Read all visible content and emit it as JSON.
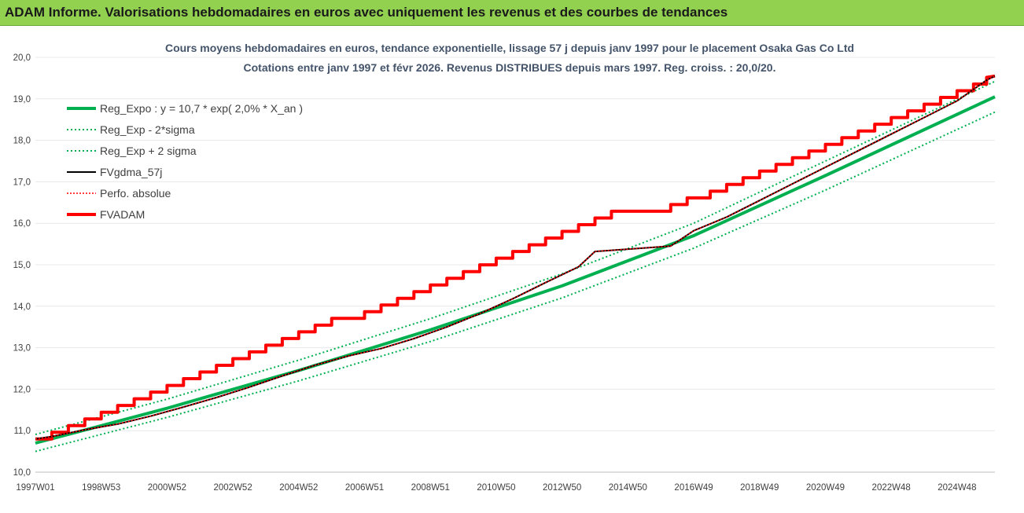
{
  "header": {
    "title": "ADAM Informe. Valorisations hebdomadaires en euros avec uniquement les revenus et des courbes de tendances"
  },
  "colors": {
    "banner": "#92d050",
    "title_text": "#44546a",
    "reg": "#00b050",
    "sigma": "#00b050",
    "fvgdma": "#000000",
    "perfo": "#ff0000",
    "fvadam": "#ff0000",
    "gridline": "#e8e8e8"
  },
  "chart_data": {
    "type": "line",
    "title_line1": "Cours moyens hebdomadaires en euros, tendance exponentielle, lissage 57 j depuis janv 1997 pour le placement Osaka Gas Co Ltd",
    "title_line2": "Cotations entre janv 1997 et févr 2026. Revenus DISTRIBUES depuis mars 1997. Reg. croiss. : 20,0/20.",
    "xlabel": "",
    "ylabel": "",
    "ylim": [
      10,
      20
    ],
    "xlim": [
      1997.0,
      2026.15
    ],
    "y_ticks": [
      "10,0",
      "11,0",
      "12,0",
      "13,0",
      "14,0",
      "15,0",
      "16,0",
      "17,0",
      "18,0",
      "19,0",
      "20,0"
    ],
    "x_ticks": [
      {
        "label": "1997W01",
        "x": 1997.0
      },
      {
        "label": "1998W53",
        "x": 1999.0
      },
      {
        "label": "2000W52",
        "x": 2001.0
      },
      {
        "label": "2002W52",
        "x": 2003.0
      },
      {
        "label": "2004W52",
        "x": 2005.0
      },
      {
        "label": "2006W51",
        "x": 2007.0
      },
      {
        "label": "2008W51",
        "x": 2009.0
      },
      {
        "label": "2010W50",
        "x": 2011.0
      },
      {
        "label": "2012W50",
        "x": 2013.0
      },
      {
        "label": "2014W50",
        "x": 2015.0
      },
      {
        "label": "2016W49",
        "x": 2017.0
      },
      {
        "label": "2018W49",
        "x": 2019.0
      },
      {
        "label": "2020W49",
        "x": 2021.0
      },
      {
        "label": "2022W48",
        "x": 2023.0
      },
      {
        "label": "2024W48",
        "x": 2025.0
      }
    ],
    "grid": true,
    "legend_position": "top-left",
    "series": [
      {
        "name": "Reg_Expo : y = 10,7 * exp( 2,0% *  X_an )",
        "key": "reg",
        "style": "solid-thick",
        "x": [
          1997.0,
          2001.0,
          2005.0,
          2009.0,
          2013.0,
          2017.0,
          2021.0,
          2026.15
        ],
        "y": [
          10.7,
          11.54,
          12.45,
          13.43,
          14.49,
          15.7,
          17.15,
          19.05
        ]
      },
      {
        "name": "Reg_Exp - 2*sigma",
        "key": "sig_lo",
        "style": "dotted",
        "x": [
          1997.0,
          2001.0,
          2005.0,
          2009.0,
          2013.0,
          2017.0,
          2021.0,
          2026.15
        ],
        "y": [
          10.5,
          11.32,
          12.2,
          13.15,
          14.2,
          15.4,
          16.8,
          18.68
        ]
      },
      {
        "name": "Reg_Exp + 2 sigma",
        "key": "sig_hi",
        "style": "dotted",
        "x": [
          1997.0,
          2001.0,
          2005.0,
          2009.0,
          2013.0,
          2017.0,
          2021.0,
          2026.15
        ],
        "y": [
          10.91,
          11.76,
          12.7,
          13.7,
          14.78,
          16.0,
          17.5,
          19.42
        ]
      },
      {
        "name": "FVgdma_57j",
        "key": "fvgdma",
        "style": "solid-thin",
        "x": [
          1997.0,
          1997.5,
          1998.5,
          1999.5,
          2000.5,
          2001.5,
          2002.5,
          2003.5,
          2004.5,
          2005.5,
          2006.5,
          2007.5,
          2008.5,
          2009.5,
          2010.5,
          2011.5,
          2012.5,
          2013.5,
          2014.0,
          2016.3,
          2017.0,
          2018.0,
          2019.0,
          2020.0,
          2021.0,
          2022.0,
          2023.0,
          2024.0,
          2025.0,
          2025.9,
          2026.15
        ],
        "y": [
          10.8,
          10.86,
          11.02,
          11.16,
          11.35,
          11.57,
          11.8,
          12.05,
          12.32,
          12.58,
          12.8,
          12.98,
          13.22,
          13.5,
          13.82,
          14.18,
          14.57,
          14.95,
          15.32,
          15.45,
          15.82,
          16.15,
          16.55,
          16.95,
          17.35,
          17.75,
          18.15,
          18.55,
          18.95,
          19.45,
          19.55
        ]
      },
      {
        "name": "Perfo. absolue",
        "key": "perfo",
        "style": "dotted-red",
        "x": [
          1997.0,
          1997.5,
          1998.5,
          1999.5,
          2000.5,
          2001.5,
          2002.5,
          2003.5,
          2004.5,
          2005.5,
          2006.5,
          2007.5,
          2008.5,
          2009.5,
          2010.5,
          2011.5,
          2012.5,
          2013.5,
          2014.0,
          2016.3,
          2017.0,
          2018.0,
          2019.0,
          2020.0,
          2021.0,
          2022.0,
          2023.0,
          2024.0,
          2025.0,
          2025.9,
          2026.15
        ],
        "y": [
          10.8,
          10.86,
          11.02,
          11.16,
          11.35,
          11.57,
          11.8,
          12.05,
          12.32,
          12.58,
          12.8,
          12.98,
          13.22,
          13.5,
          13.82,
          14.18,
          14.57,
          14.95,
          15.32,
          15.45,
          15.82,
          16.15,
          16.55,
          16.95,
          17.35,
          17.75,
          18.15,
          18.55,
          18.95,
          19.45,
          19.55
        ]
      },
      {
        "name": "FVADAM",
        "key": "fvadam",
        "style": "step-thick",
        "steps_x": [
          1997.5,
          1998.0,
          1998.5,
          1999.0,
          1999.5,
          2000.0,
          2000.5,
          2001.0,
          2001.5,
          2002.0,
          2002.5,
          2003.0,
          2003.5,
          2004.0,
          2004.5,
          2005.0,
          2005.5,
          2006.0,
          2007.0,
          2007.5,
          2008.0,
          2008.5,
          2009.0,
          2009.5,
          2010.0,
          2010.5,
          2011.0,
          2011.5,
          2012.0,
          2012.5,
          2013.0,
          2013.5,
          2014.0,
          2014.5,
          2016.3,
          2016.8,
          2017.5,
          2018.0,
          2018.5,
          2019.0,
          2019.5,
          2020.0,
          2020.5,
          2021.0,
          2021.5,
          2022.0,
          2022.5,
          2023.0,
          2023.5,
          2024.0,
          2024.5,
          2025.0,
          2025.5,
          2025.9
        ],
        "x_start": 1997.0,
        "x_end": 2026.15,
        "y_start": 10.8,
        "y_end": 19.55
      }
    ]
  }
}
